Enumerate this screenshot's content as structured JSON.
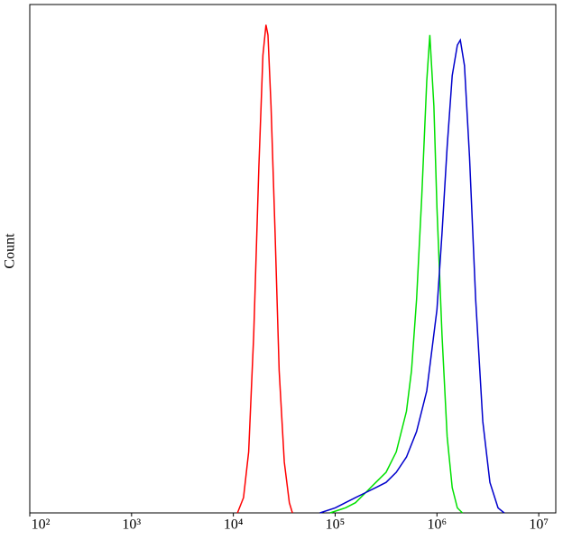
{
  "chart_data": {
    "type": "line",
    "ylabel": "Count",
    "xscale": "log",
    "xlim": [
      100,
      14700000
    ],
    "ylim": [
      0,
      100
    ],
    "xticks": [
      {
        "value": 100,
        "label": "10²"
      },
      {
        "value": 1000,
        "label": "10³"
      },
      {
        "value": 10000,
        "label": "10⁴"
      },
      {
        "value": 100000,
        "label": "10⁵"
      },
      {
        "value": 1000000,
        "label": "10⁶"
      },
      {
        "value": 10000000,
        "label": "10⁷"
      }
    ],
    "series": [
      {
        "color": "#ff0000",
        "x": [
          10965,
          12589,
          14125,
          15849,
          17783,
          19498,
          20893,
          21878,
          23442,
          25704,
          28184,
          31623,
          35481,
          38019
        ],
        "values": [
          0,
          3,
          12,
          35,
          68,
          90,
          96,
          94,
          80,
          55,
          28,
          10,
          2,
          0
        ]
      },
      {
        "color": "#00e000",
        "x": [
          89125,
          125893,
          158489,
          199526,
          251189,
          316228,
          398107,
          501187,
          562341,
          630957,
          707946,
          794328,
          851138,
          933254,
          1000000,
          1122018,
          1258925,
          1412538,
          1584893,
          1778279
        ],
        "values": [
          0,
          1,
          2,
          4,
          6,
          8,
          12,
          20,
          28,
          42,
          62,
          85,
          94,
          80,
          60,
          35,
          15,
          5,
          1,
          0
        ]
      },
      {
        "color": "#0000cc",
        "x": [
          70795,
          100000,
          125893,
          158489,
          199526,
          251189,
          316228,
          398107,
          501187,
          630957,
          794328,
          1000000,
          1122018,
          1258925,
          1412538,
          1584893,
          1698244,
          1862087,
          2089296,
          2398833,
          2818383,
          3311311,
          3981072,
          4570882
        ],
        "values": [
          0,
          1,
          2,
          3,
          4,
          5,
          6,
          8,
          11,
          16,
          24,
          40,
          55,
          72,
          86,
          92,
          93,
          88,
          70,
          42,
          18,
          6,
          1,
          0
        ]
      }
    ]
  }
}
